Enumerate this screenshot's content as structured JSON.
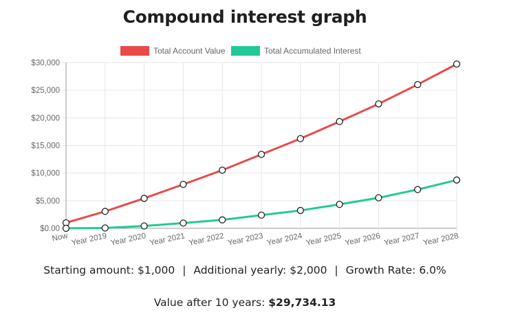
{
  "page": {
    "title": "Compound interest graph"
  },
  "summary": {
    "starting_label": "Starting amount:",
    "starting_value": "$1,000",
    "additional_label": "Additional yearly:",
    "additional_value": "$2,000",
    "growth_label": "Growth Rate:",
    "growth_value": "6.0%",
    "separator": "|",
    "final_label": "Value after 10 years:",
    "final_value": "$29,734.13"
  },
  "colors": {
    "total_account_value": "#e84a4a",
    "total_accumulated_interest": "#22c997",
    "grid": "#e6e6e6",
    "axis": "#999999",
    "tick_text": "#666666",
    "point_fill": "#ffffff",
    "point_stroke": "#222222"
  },
  "chart_data": {
    "type": "line",
    "title": "Compound interest graph",
    "categories": [
      "Now",
      "Year 2019",
      "Year 2020",
      "Year 2021",
      "Year 2022",
      "Year 2023",
      "Year 2024",
      "Year 2025",
      "Year 2026",
      "Year 2027",
      "Year 2028"
    ],
    "series": [
      {
        "name": "Total Account Value",
        "color": "#e84a4a",
        "values": [
          1000,
          3060,
          5420,
          7950,
          10520,
          13380,
          16230,
          19330,
          22520,
          26020,
          29734.13
        ]
      },
      {
        "name": "Total Accumulated Interest",
        "color": "#22c997",
        "values": [
          0,
          60,
          420,
          950,
          1520,
          2380,
          3230,
          4330,
          5520,
          7020,
          8734.13
        ]
      }
    ],
    "ylim": [
      0,
      30000
    ],
    "yticks": [
      0,
      5000,
      10000,
      15000,
      20000,
      25000,
      30000
    ],
    "ytick_labels": [
      "$0.00",
      "$5,000",
      "$10,000",
      "$15,000",
      "$20,000",
      "$25,000",
      "$30,000"
    ],
    "grid": true,
    "legend": "top-center"
  }
}
